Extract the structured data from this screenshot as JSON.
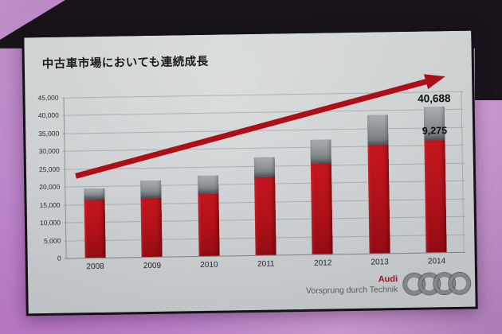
{
  "slide": {
    "title": "中古車市場においても連続成長"
  },
  "footer": {
    "audi": "Audi",
    "slogan": "Vorsprung durch Technik"
  },
  "colors": {
    "bar_red": "#b01119",
    "bar_gray": "#8d9296",
    "arrow_red": "#ad0e17",
    "audi_red": "#a50f17",
    "wall_pink": "#c98bd6",
    "slide_bg": "#d2d5d7"
  },
  "chart_data": {
    "type": "bar",
    "stacked": true,
    "title": "中古車市場においても連続成長",
    "categories": [
      "2008",
      "2009",
      "2010",
      "2011",
      "2012",
      "2013",
      "2014"
    ],
    "series": [
      {
        "name": "lower-red-segment",
        "color": "#b01119",
        "values": [
          16300,
          16500,
          17300,
          21900,
          25400,
          30400,
          31413
        ]
      },
      {
        "name": "upper-gray-segment",
        "color": "#8d9296",
        "values": [
          3100,
          4900,
          5100,
          5500,
          6600,
          8400,
          9275
        ]
      }
    ],
    "totals": [
      19400,
      21400,
      22400,
      27400,
      32000,
      38800,
      40688
    ],
    "xlabel": "",
    "ylabel": "",
    "ylim": [
      0,
      45000
    ],
    "ytick_step": 5000,
    "yticks": [
      "0",
      "5,000",
      "10,000",
      "15,000",
      "20,000",
      "25,000",
      "30,000",
      "35,000",
      "40,000",
      "45,000"
    ],
    "grid": true,
    "legend": false,
    "trend_arrow": true,
    "annotations": [
      {
        "text": "40,688",
        "category": "2014",
        "anchor": "bar-top"
      },
      {
        "text": "9,275",
        "category": "2014",
        "anchor": "segment-boundary"
      }
    ]
  }
}
